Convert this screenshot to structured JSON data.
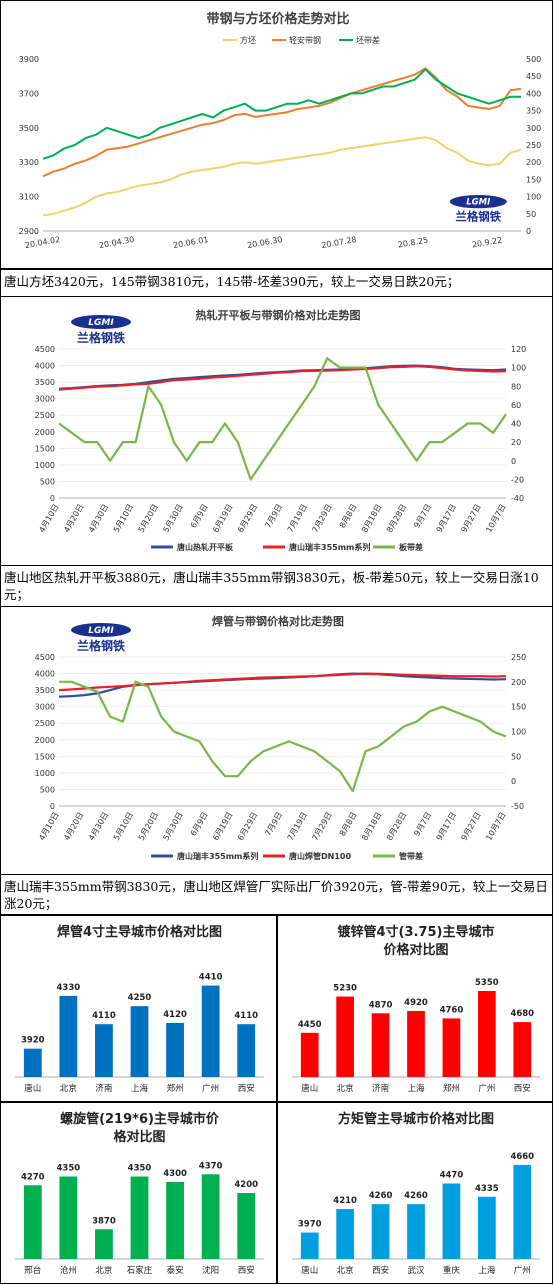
{
  "charts": [
    {
      "id": "c1",
      "type": "line",
      "title": "带钢与方坯价格走势对比",
      "logo_text": "兰格钢铁",
      "logo_badge": "LGMI",
      "x_ticks": [
        "20.04.02",
        "20.04.30",
        "20.06.01",
        "20.06.30",
        "20.07.28",
        "20.8.25",
        "20.9.22"
      ],
      "y_left_ticks": [
        "2900",
        "3100",
        "3300",
        "3500",
        "3700",
        "3900"
      ],
      "y_right_ticks": [
        "0",
        "50",
        "100",
        "150",
        "200",
        "250",
        "300",
        "350",
        "400",
        "450",
        "500"
      ],
      "ylim_left": [
        2900,
        4000
      ],
      "ylim_right": [
        0,
        500
      ],
      "series": [
        {
          "name": "方坯",
          "color": "#f2d16b",
          "axis": "left",
          "values": [
            3000,
            3010,
            3030,
            3050,
            3080,
            3120,
            3140,
            3150,
            3170,
            3190,
            3200,
            3210,
            3230,
            3260,
            3280,
            3290,
            3300,
            3310,
            3330,
            3340,
            3330,
            3340,
            3350,
            3360,
            3370,
            3380,
            3390,
            3400,
            3420,
            3430,
            3440,
            3450,
            3460,
            3470,
            3480,
            3490,
            3500,
            3480,
            3430,
            3400,
            3350,
            3330,
            3320,
            3330,
            3400,
            3420
          ]
        },
        {
          "name": "轻安带钢",
          "color": "#ed7d31",
          "axis": "left",
          "values": [
            3250,
            3280,
            3300,
            3330,
            3350,
            3380,
            3420,
            3430,
            3440,
            3460,
            3480,
            3500,
            3520,
            3540,
            3560,
            3580,
            3590,
            3610,
            3640,
            3650,
            3630,
            3640,
            3650,
            3660,
            3680,
            3690,
            3700,
            3720,
            3750,
            3780,
            3800,
            3820,
            3840,
            3860,
            3880,
            3900,
            3940,
            3880,
            3800,
            3760,
            3700,
            3690,
            3680,
            3700,
            3800,
            3810
          ]
        },
        {
          "name": "坯带差",
          "color": "#00b050",
          "axis": "right",
          "values": [
            210,
            220,
            240,
            250,
            270,
            280,
            300,
            290,
            280,
            270,
            280,
            300,
            310,
            320,
            330,
            340,
            330,
            350,
            360,
            370,
            350,
            350,
            360,
            370,
            370,
            380,
            370,
            380,
            390,
            400,
            400,
            410,
            420,
            420,
            430,
            440,
            470,
            440,
            420,
            400,
            390,
            380,
            370,
            380,
            390,
            390
          ]
        }
      ]
    },
    {
      "id": "c2",
      "type": "line",
      "title": "热轧开平板与带钢价格对比走势图",
      "logo_text": "兰格钢铁",
      "logo_badge": "LGMI",
      "x_ticks": [
        "4月10日",
        "4月20日",
        "4月30日",
        "5月10日",
        "5月20日",
        "5月30日",
        "6月9日",
        "6月19日",
        "6月29日",
        "7月9日",
        "7月19日",
        "7月29日",
        "8月8日",
        "8月18日",
        "8月28日",
        "9月7日",
        "9月17日",
        "9月27日",
        "10月7日"
      ],
      "y_left_ticks": [
        "0",
        "500",
        "1000",
        "1500",
        "2000",
        "2500",
        "3000",
        "3500",
        "4000",
        "4500"
      ],
      "y_right_ticks": [
        "-40",
        "-20",
        "0",
        "20",
        "40",
        "60",
        "80",
        "100",
        "120"
      ],
      "ylim_left": [
        0,
        4500
      ],
      "ylim_right": [
        -40,
        120
      ],
      "legend": [
        "唐山热轧开平板",
        "唐山瑞丰355mm系列",
        "板带差"
      ],
      "series": [
        {
          "name": "唐山热轧开平板",
          "color": "#2f4fa0",
          "axis": "left",
          "values": [
            3300,
            3320,
            3350,
            3380,
            3400,
            3420,
            3450,
            3500,
            3550,
            3600,
            3620,
            3650,
            3680,
            3700,
            3720,
            3750,
            3780,
            3800,
            3820,
            3850,
            3860,
            3870,
            3880,
            3900,
            3920,
            3950,
            3980,
            3990,
            4000,
            3980,
            3950,
            3900,
            3880,
            3870,
            3860,
            3880
          ]
        },
        {
          "name": "唐山瑞丰355mm系列",
          "color": "#e8202a",
          "axis": "left",
          "values": [
            3270,
            3300,
            3330,
            3360,
            3380,
            3400,
            3430,
            3450,
            3500,
            3560,
            3580,
            3600,
            3640,
            3660,
            3690,
            3720,
            3750,
            3780,
            3800,
            3830,
            3840,
            3850,
            3860,
            3880,
            3900,
            3920,
            3950,
            3960,
            3980,
            3960,
            3920,
            3880,
            3850,
            3840,
            3820,
            3830
          ]
        },
        {
          "name": "板带差",
          "color": "#7ab648",
          "axis": "right",
          "values": [
            40,
            30,
            20,
            20,
            0,
            20,
            20,
            80,
            60,
            20,
            0,
            20,
            20,
            40,
            20,
            -20,
            0,
            20,
            40,
            60,
            80,
            110,
            100,
            100,
            100,
            60,
            40,
            20,
            0,
            20,
            20,
            30,
            40,
            40,
            30,
            50
          ]
        }
      ]
    },
    {
      "id": "c3",
      "type": "line",
      "title": "焊管与带钢价格对比走势图",
      "logo_text": "兰格钢铁",
      "logo_badge": "LGMI",
      "x_ticks": [
        "4月10日",
        "4月20日",
        "4月30日",
        "5月10日",
        "5月20日",
        "5月30日",
        "6月9日",
        "6月19日",
        "6月29日",
        "7月9日",
        "7月19日",
        "7月29日",
        "8月8日",
        "8月18日",
        "8月28日",
        "9月7日",
        "9月17日",
        "9月27日",
        "10月7日"
      ],
      "y_left_ticks": [
        "0",
        "500",
        "1000",
        "1500",
        "2000",
        "2500",
        "3000",
        "3500",
        "4000",
        "4500"
      ],
      "y_right_ticks": [
        "-50",
        "0",
        "50",
        "100",
        "150",
        "200",
        "250"
      ],
      "ylim_left": [
        0,
        4500
      ],
      "ylim_right": [
        -50,
        250
      ],
      "legend": [
        "唐山瑞丰355mm系列",
        "唐山焊管DN100",
        "管带差"
      ],
      "series": [
        {
          "name": "唐山瑞丰355mm系列",
          "color": "#2f4fa0",
          "axis": "left",
          "values": [
            3300,
            3320,
            3350,
            3400,
            3500,
            3600,
            3650,
            3680,
            3700,
            3720,
            3740,
            3760,
            3780,
            3800,
            3820,
            3840,
            3850,
            3860,
            3880,
            3900,
            3920,
            3950,
            3980,
            4000,
            3990,
            3980,
            3950,
            3920,
            3900,
            3880,
            3860,
            3850,
            3840,
            3830,
            3820,
            3830
          ]
        },
        {
          "name": "唐山焊管DN100",
          "color": "#e8202a",
          "axis": "left",
          "values": [
            3500,
            3520,
            3550,
            3580,
            3600,
            3620,
            3650,
            3680,
            3700,
            3720,
            3750,
            3780,
            3800,
            3820,
            3840,
            3860,
            3880,
            3890,
            3900,
            3910,
            3920,
            3940,
            3960,
            3980,
            4000,
            3990,
            3980,
            3960,
            3950,
            3940,
            3930,
            3920,
            3920,
            3920,
            3910,
            3920
          ]
        },
        {
          "name": "管带差",
          "color": "#7ab648",
          "axis": "right",
          "values": [
            200,
            200,
            190,
            180,
            130,
            120,
            200,
            190,
            130,
            100,
            90,
            80,
            40,
            10,
            10,
            40,
            60,
            70,
            80,
            70,
            60,
            40,
            20,
            -20,
            60,
            70,
            90,
            110,
            120,
            140,
            150,
            140,
            130,
            120,
            100,
            90
          ]
        }
      ]
    }
  ],
  "captions": [
    "唐山方坯3420元，145带钢3810元，145带-坯差390元，较上一交易日跌20元；",
    "唐山地区热轧开平板3880元，唐山瑞丰355mm带钢3830元，板-带差50元，较上一交易日涨10元；",
    "唐山瑞丰355mm带钢3830元，唐山地区焊管厂实际出厂价3920元，管-带差90元，较上一交易日涨20元；"
  ],
  "bar_charts": [
    {
      "id": "b1",
      "type": "bar",
      "title": "焊管4寸主导城市价格对比图",
      "color": "#0070c0",
      "categories": [
        "唐山",
        "北京",
        "济南",
        "上海",
        "郑州",
        "广州",
        "西安"
      ],
      "values": [
        3920,
        4330,
        4110,
        4250,
        4120,
        4410,
        4110
      ],
      "ylim": [
        3700,
        4500
      ]
    },
    {
      "id": "b2",
      "type": "bar",
      "title": "镀锌管4寸(3.75)主导城市价格对比图",
      "color": "#ff0000",
      "categories": [
        "唐山",
        "北京",
        "济南",
        "上海",
        "郑州",
        "广州",
        "西安"
      ],
      "values": [
        4450,
        5230,
        4870,
        4920,
        4760,
        5350,
        4680
      ],
      "ylim": [
        3500,
        5500
      ]
    },
    {
      "id": "b3",
      "type": "bar",
      "title": "螺旋管(219*6)主导城市价格对比图",
      "color": "#00b050",
      "categories": [
        "邢台",
        "沧州",
        "北京",
        "石家庄",
        "泰安",
        "沈阳",
        "西安"
      ],
      "values": [
        4270,
        4350,
        3870,
        4350,
        4300,
        4370,
        4200
      ],
      "ylim": [
        3600,
        4400
      ]
    },
    {
      "id": "b4",
      "type": "bar",
      "title": "方矩管主导城市价格对比图",
      "color": "#00a0e0",
      "categories": [
        "唐山",
        "北京",
        "西安",
        "武汉",
        "重庆",
        "上海",
        "广州"
      ],
      "values": [
        3970,
        4210,
        4260,
        4260,
        4470,
        4335,
        4660
      ],
      "ylim": [
        3700,
        4700
      ]
    }
  ]
}
